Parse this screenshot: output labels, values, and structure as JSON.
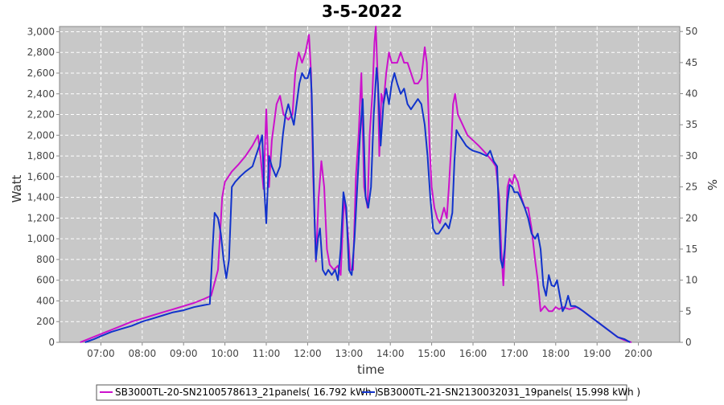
{
  "chart_data": {
    "type": "line",
    "title": "3-5-2022",
    "xlabel": "time",
    "ylabel": "Watt",
    "y2label": "%",
    "x_ticks": [
      "07:00",
      "08:00",
      "09:00",
      "10:00",
      "11:00",
      "12:00",
      "13:00",
      "14:00",
      "15:00",
      "16:00",
      "17:00",
      "18:00",
      "19:00",
      "20:00"
    ],
    "xlim": [
      "06:00",
      "21:00"
    ],
    "ylim": [
      0,
      3050
    ],
    "y_ticks": [
      0,
      200,
      400,
      600,
      800,
      1000,
      1200,
      1400,
      1600,
      1800,
      2000,
      2200,
      2400,
      2600,
      2800,
      3000
    ],
    "y_tick_labels": [
      "0",
      "200",
      "400",
      "600",
      "800",
      "1,000",
      "1,200",
      "1,400",
      "1,600",
      "1,800",
      "2,000",
      "2,200",
      "2,400",
      "2,600",
      "2,800",
      "3,000"
    ],
    "y2lim": [
      0,
      50.8
    ],
    "y2_ticks": [
      0,
      5,
      10,
      15,
      20,
      25,
      30,
      35,
      40,
      45,
      50
    ],
    "grid": true,
    "legend_position": "bottom",
    "series": [
      {
        "name": "SB3000TL-20-SN2100578613_21panels( 16.792 kWh )",
        "color": "#cc11cc",
        "points": [
          [
            "06:30",
            0
          ],
          [
            "06:45",
            40
          ],
          [
            "07:00",
            80
          ],
          [
            "07:15",
            120
          ],
          [
            "07:30",
            160
          ],
          [
            "07:45",
            200
          ],
          [
            "08:00",
            230
          ],
          [
            "08:15",
            260
          ],
          [
            "08:30",
            290
          ],
          [
            "08:45",
            320
          ],
          [
            "09:00",
            350
          ],
          [
            "09:15",
            380
          ],
          [
            "09:30",
            420
          ],
          [
            "09:40",
            450
          ],
          [
            "09:50",
            700
          ],
          [
            "09:56",
            1400
          ],
          [
            "10:00",
            1550
          ],
          [
            "10:10",
            1650
          ],
          [
            "10:20",
            1720
          ],
          [
            "10:30",
            1800
          ],
          [
            "10:40",
            1900
          ],
          [
            "10:48",
            2000
          ],
          [
            "10:52",
            1780
          ],
          [
            "10:56",
            1480
          ],
          [
            "11:00",
            2250
          ],
          [
            "11:04",
            1500
          ],
          [
            "11:08",
            1950
          ],
          [
            "11:15",
            2300
          ],
          [
            "11:20",
            2380
          ],
          [
            "11:25",
            2200
          ],
          [
            "11:32",
            2150
          ],
          [
            "11:38",
            2200
          ],
          [
            "11:42",
            2600
          ],
          [
            "11:47",
            2800
          ],
          [
            "11:52",
            2700
          ],
          [
            "11:57",
            2800
          ],
          [
            "12:02",
            2970
          ],
          [
            "12:05",
            2600
          ],
          [
            "12:08",
            1600
          ],
          [
            "12:12",
            780
          ],
          [
            "12:16",
            1400
          ],
          [
            "12:20",
            1750
          ],
          [
            "12:24",
            1500
          ],
          [
            "12:28",
            900
          ],
          [
            "12:32",
            750
          ],
          [
            "12:38",
            700
          ],
          [
            "12:44",
            740
          ],
          [
            "12:48",
            650
          ],
          [
            "12:53",
            1400
          ],
          [
            "12:58",
            1100
          ],
          [
            "13:02",
            700
          ],
          [
            "13:06",
            700
          ],
          [
            "13:10",
            1600
          ],
          [
            "13:14",
            2000
          ],
          [
            "13:18",
            2600
          ],
          [
            "13:22",
            1500
          ],
          [
            "13:27",
            1300
          ],
          [
            "13:30",
            2000
          ],
          [
            "13:34",
            2400
          ],
          [
            "13:37",
            2900
          ],
          [
            "13:39",
            3050
          ],
          [
            "13:42",
            2500
          ],
          [
            "13:44",
            1800
          ],
          [
            "13:47",
            2400
          ],
          [
            "13:50",
            2300
          ],
          [
            "13:54",
            2600
          ],
          [
            "13:58",
            2800
          ],
          [
            "14:02",
            2700
          ],
          [
            "14:06",
            2700
          ],
          [
            "14:10",
            2700
          ],
          [
            "14:15",
            2800
          ],
          [
            "14:20",
            2700
          ],
          [
            "14:25",
            2700
          ],
          [
            "14:30",
            2600
          ],
          [
            "14:35",
            2500
          ],
          [
            "14:40",
            2500
          ],
          [
            "14:45",
            2550
          ],
          [
            "14:50",
            2850
          ],
          [
            "14:53",
            2700
          ],
          [
            "14:57",
            1900
          ],
          [
            "15:00",
            1500
          ],
          [
            "15:04",
            1300
          ],
          [
            "15:08",
            1200
          ],
          [
            "15:12",
            1150
          ],
          [
            "15:18",
            1300
          ],
          [
            "15:22",
            1200
          ],
          [
            "15:25",
            1500
          ],
          [
            "15:28",
            1850
          ],
          [
            "15:31",
            2300
          ],
          [
            "15:34",
            2400
          ],
          [
            "15:38",
            2200
          ],
          [
            "15:45",
            2100
          ],
          [
            "15:52",
            2000
          ],
          [
            "16:00",
            1950
          ],
          [
            "16:08",
            1900
          ],
          [
            "16:15",
            1850
          ],
          [
            "16:22",
            1800
          ],
          [
            "16:28",
            1750
          ],
          [
            "16:33",
            1700
          ],
          [
            "16:38",
            1400
          ],
          [
            "16:41",
            900
          ],
          [
            "16:44",
            550
          ],
          [
            "16:47",
            1000
          ],
          [
            "16:50",
            1500
          ],
          [
            "16:53",
            1580
          ],
          [
            "16:57",
            1530
          ],
          [
            "17:00",
            1620
          ],
          [
            "17:05",
            1550
          ],
          [
            "17:10",
            1400
          ],
          [
            "17:15",
            1300
          ],
          [
            "17:20",
            1300
          ],
          [
            "17:25",
            1100
          ],
          [
            "17:30",
            800
          ],
          [
            "17:34",
            600
          ],
          [
            "17:38",
            300
          ],
          [
            "17:44",
            350
          ],
          [
            "17:50",
            300
          ],
          [
            "17:55",
            300
          ],
          [
            "18:00",
            340
          ],
          [
            "18:05",
            320
          ],
          [
            "18:10",
            340
          ],
          [
            "18:20",
            320
          ],
          [
            "18:30",
            340
          ],
          [
            "18:40",
            300
          ],
          [
            "18:50",
            250
          ],
          [
            "19:00",
            200
          ],
          [
            "19:10",
            150
          ],
          [
            "19:20",
            100
          ],
          [
            "19:30",
            50
          ],
          [
            "19:40",
            20
          ],
          [
            "19:50",
            0
          ]
        ]
      },
      {
        "name": "SB3000TL-21-SN2130032031_19panels( 15.998 kWh )",
        "color": "#1133cc",
        "points": [
          [
            "06:37",
            0
          ],
          [
            "06:50",
            30
          ],
          [
            "07:00",
            60
          ],
          [
            "07:15",
            100
          ],
          [
            "07:30",
            130
          ],
          [
            "07:45",
            160
          ],
          [
            "08:00",
            200
          ],
          [
            "08:15",
            230
          ],
          [
            "08:30",
            260
          ],
          [
            "08:45",
            290
          ],
          [
            "09:00",
            310
          ],
          [
            "09:15",
            340
          ],
          [
            "09:30",
            360
          ],
          [
            "09:38",
            370
          ],
          [
            "09:42",
            900
          ],
          [
            "09:45",
            1250
          ],
          [
            "09:50",
            1200
          ],
          [
            "09:54",
            1050
          ],
          [
            "09:58",
            800
          ],
          [
            "10:02",
            620
          ],
          [
            "10:06",
            800
          ],
          [
            "10:10",
            1500
          ],
          [
            "10:15",
            1550
          ],
          [
            "10:22",
            1600
          ],
          [
            "10:30",
            1650
          ],
          [
            "10:40",
            1700
          ],
          [
            "10:45",
            1800
          ],
          [
            "10:50",
            1900
          ],
          [
            "10:54",
            2000
          ],
          [
            "10:57",
            1500
          ],
          [
            "11:00",
            1150
          ],
          [
            "11:04",
            1800
          ],
          [
            "11:08",
            1700
          ],
          [
            "11:14",
            1600
          ],
          [
            "11:20",
            1700
          ],
          [
            "11:24",
            2000
          ],
          [
            "11:28",
            2200
          ],
          [
            "11:32",
            2300
          ],
          [
            "11:36",
            2200
          ],
          [
            "11:40",
            2100
          ],
          [
            "11:44",
            2300
          ],
          [
            "11:48",
            2500
          ],
          [
            "11:52",
            2600
          ],
          [
            "11:56",
            2550
          ],
          [
            "12:00",
            2550
          ],
          [
            "12:04",
            2650
          ],
          [
            "12:06",
            2400
          ],
          [
            "12:10",
            1200
          ],
          [
            "12:12",
            800
          ],
          [
            "12:15",
            1000
          ],
          [
            "12:18",
            1100
          ],
          [
            "12:22",
            700
          ],
          [
            "12:26",
            650
          ],
          [
            "12:30",
            700
          ],
          [
            "12:35",
            650
          ],
          [
            "12:40",
            700
          ],
          [
            "12:44",
            600
          ],
          [
            "12:48",
            900
          ],
          [
            "12:52",
            1450
          ],
          [
            "12:56",
            1300
          ],
          [
            "13:00",
            700
          ],
          [
            "13:04",
            650
          ],
          [
            "13:08",
            1000
          ],
          [
            "13:12",
            1500
          ],
          [
            "13:16",
            2000
          ],
          [
            "13:20",
            2350
          ],
          [
            "13:24",
            1400
          ],
          [
            "13:28",
            1300
          ],
          [
            "13:32",
            1500
          ],
          [
            "13:36",
            2200
          ],
          [
            "13:40",
            2650
          ],
          [
            "13:42",
            2500
          ],
          [
            "13:46",
            1900
          ],
          [
            "13:50",
            2300
          ],
          [
            "13:54",
            2450
          ],
          [
            "13:58",
            2300
          ],
          [
            "14:02",
            2500
          ],
          [
            "14:06",
            2600
          ],
          [
            "14:10",
            2500
          ],
          [
            "14:15",
            2400
          ],
          [
            "14:20",
            2450
          ],
          [
            "14:25",
            2300
          ],
          [
            "14:30",
            2250
          ],
          [
            "14:35",
            2300
          ],
          [
            "14:40",
            2350
          ],
          [
            "14:45",
            2300
          ],
          [
            "14:50",
            2100
          ],
          [
            "14:54",
            1800
          ],
          [
            "14:58",
            1400
          ],
          [
            "15:02",
            1100
          ],
          [
            "15:06",
            1050
          ],
          [
            "15:10",
            1050
          ],
          [
            "15:15",
            1100
          ],
          [
            "15:20",
            1150
          ],
          [
            "15:25",
            1100
          ],
          [
            "15:30",
            1250
          ],
          [
            "15:33",
            1750
          ],
          [
            "15:36",
            2050
          ],
          [
            "15:40",
            2000
          ],
          [
            "15:45",
            1950
          ],
          [
            "15:50",
            1900
          ],
          [
            "15:55",
            1870
          ],
          [
            "16:00",
            1850
          ],
          [
            "16:10",
            1830
          ],
          [
            "16:20",
            1800
          ],
          [
            "16:25",
            1850
          ],
          [
            "16:30",
            1750
          ],
          [
            "16:35",
            1700
          ],
          [
            "16:40",
            800
          ],
          [
            "16:43",
            720
          ],
          [
            "16:46",
            900
          ],
          [
            "16:50",
            1350
          ],
          [
            "16:53",
            1520
          ],
          [
            "16:57",
            1500
          ],
          [
            "17:00",
            1450
          ],
          [
            "17:05",
            1450
          ],
          [
            "17:10",
            1380
          ],
          [
            "17:15",
            1300
          ],
          [
            "17:20",
            1200
          ],
          [
            "17:25",
            1050
          ],
          [
            "17:30",
            1000
          ],
          [
            "17:34",
            1050
          ],
          [
            "17:38",
            900
          ],
          [
            "17:42",
            550
          ],
          [
            "17:46",
            450
          ],
          [
            "17:50",
            650
          ],
          [
            "17:54",
            550
          ],
          [
            "17:58",
            540
          ],
          [
            "18:02",
            600
          ],
          [
            "18:06",
            450
          ],
          [
            "18:10",
            300
          ],
          [
            "18:14",
            350
          ],
          [
            "18:18",
            450
          ],
          [
            "18:22",
            350
          ],
          [
            "18:28",
            350
          ],
          [
            "18:34",
            330
          ],
          [
            "18:40",
            300
          ],
          [
            "18:50",
            250
          ],
          [
            "19:00",
            200
          ],
          [
            "19:10",
            150
          ],
          [
            "19:20",
            100
          ],
          [
            "19:30",
            50
          ],
          [
            "19:40",
            30
          ],
          [
            "19:48",
            0
          ]
        ]
      }
    ]
  }
}
